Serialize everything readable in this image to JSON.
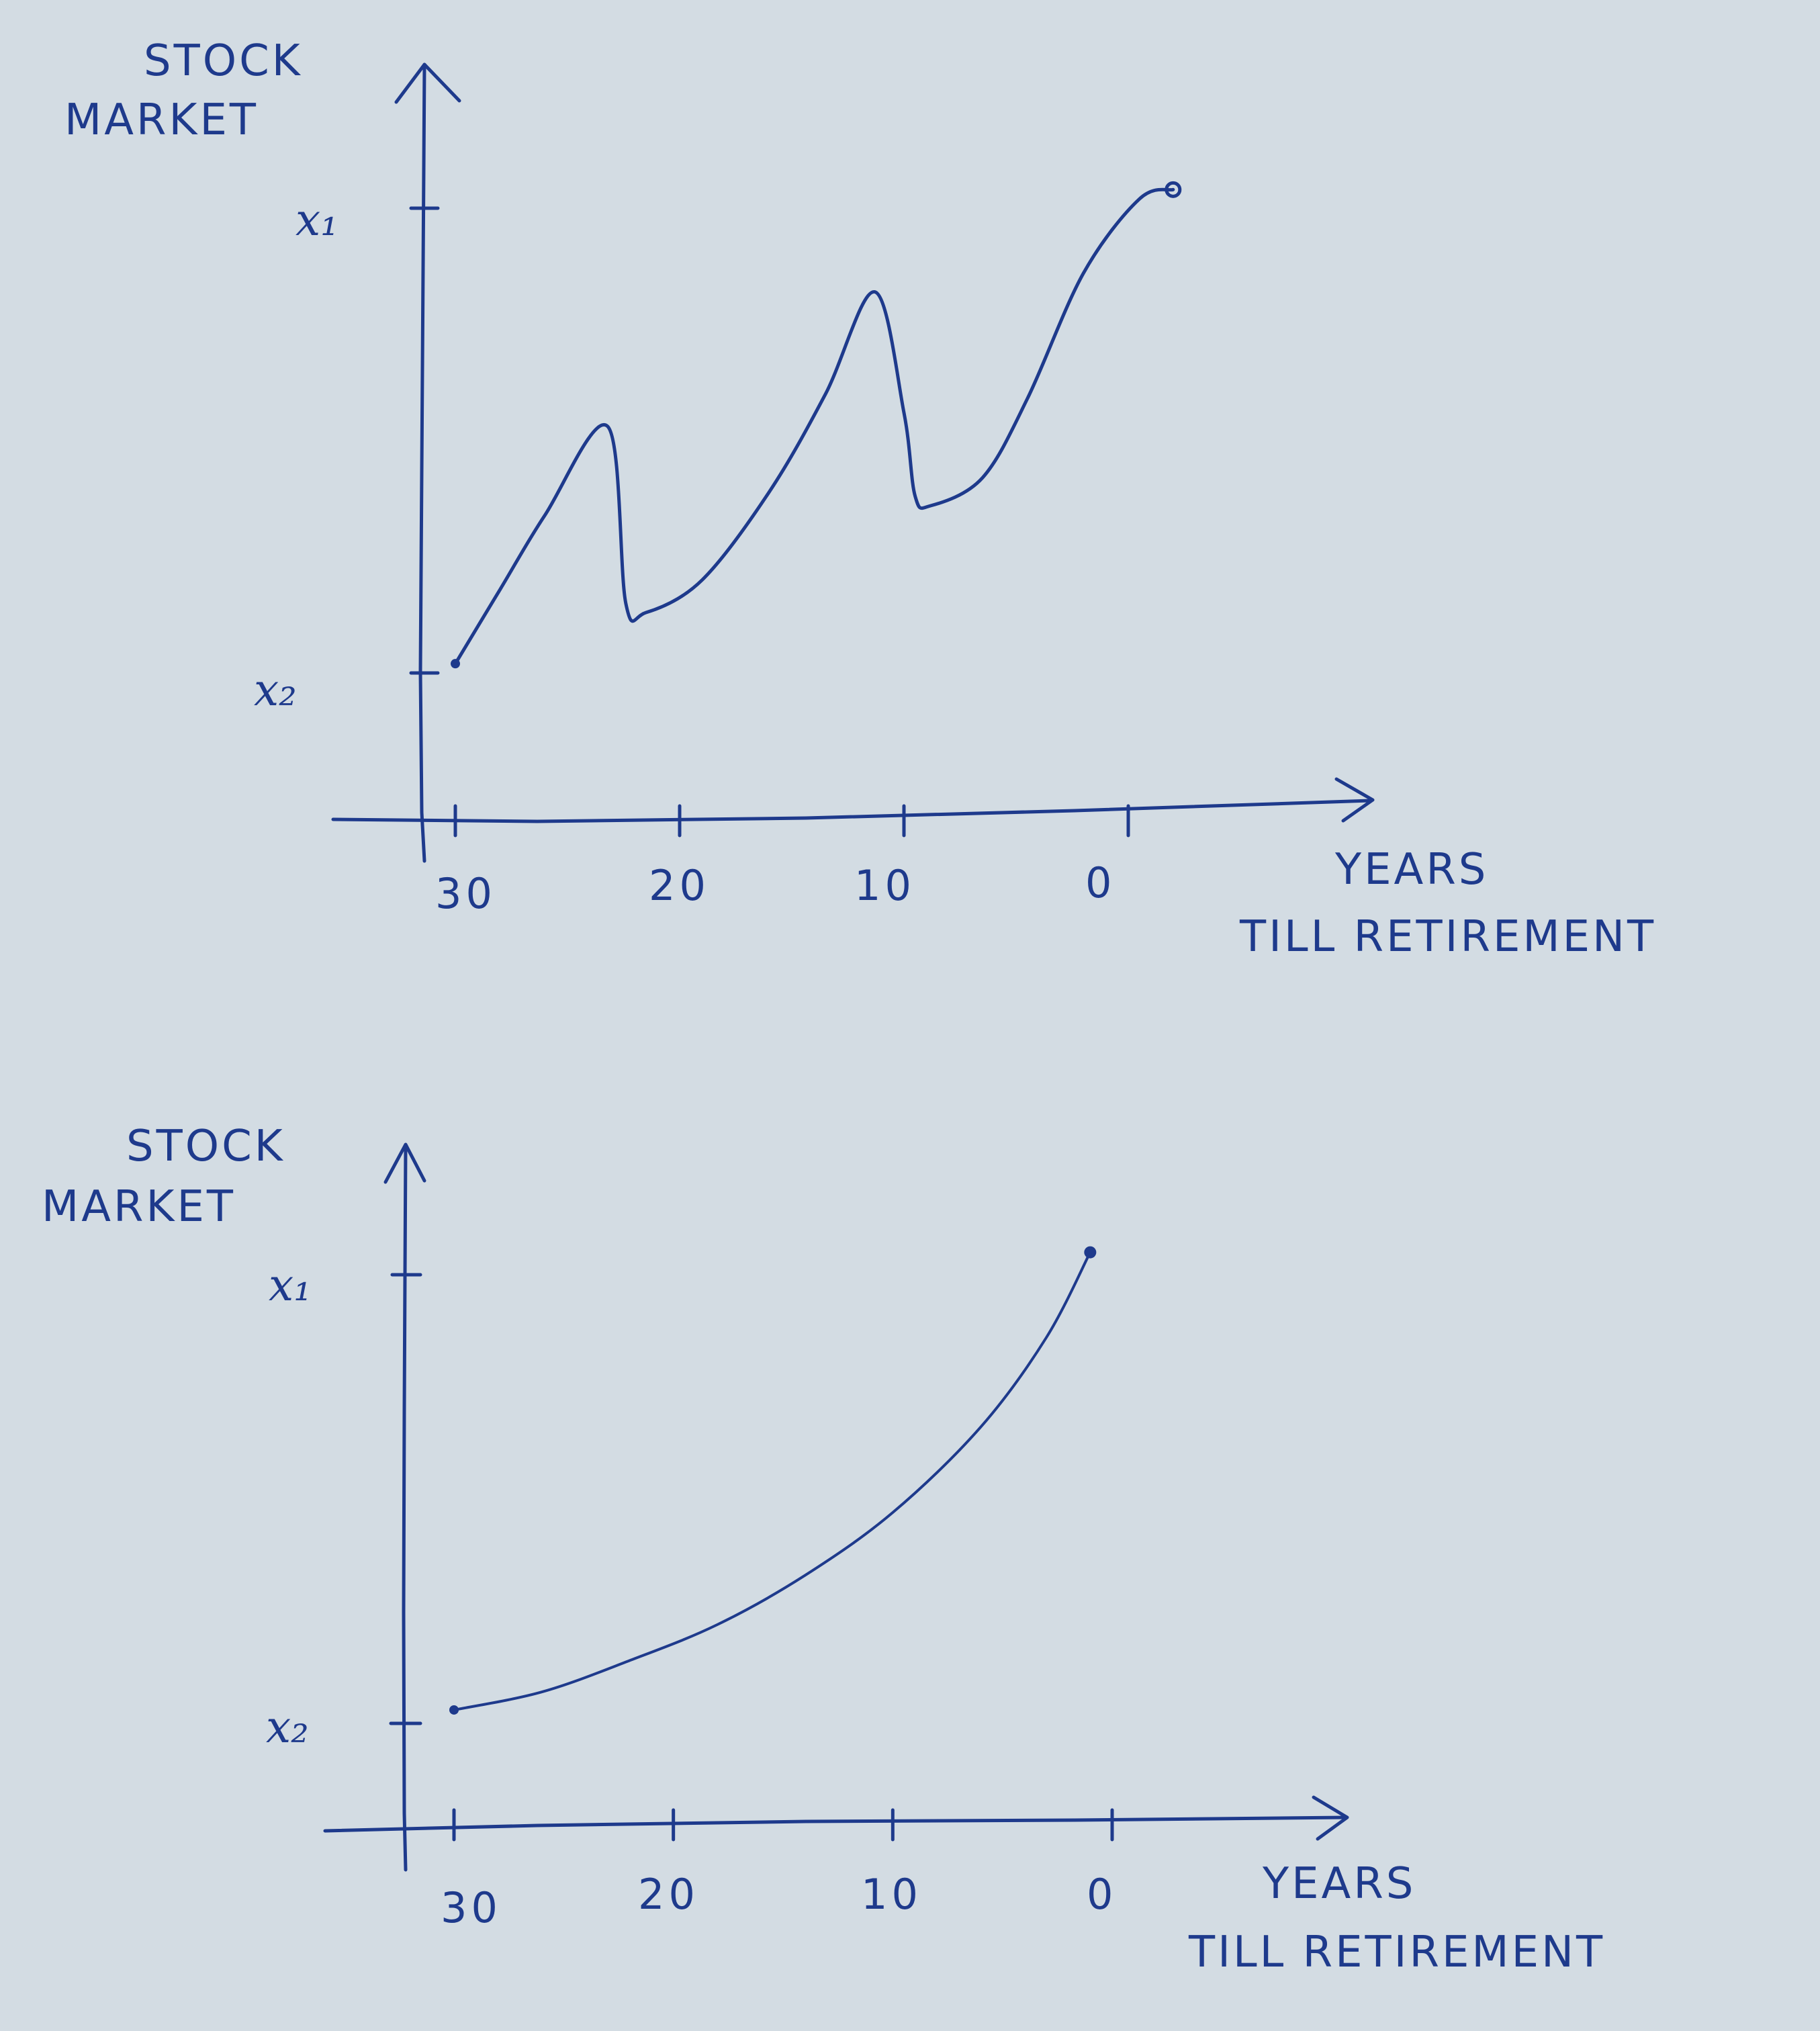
{
  "style": {
    "ink": "#1e3a8c",
    "paper": "#d3dce3"
  },
  "chart_data": [
    {
      "type": "line",
      "y_axis_label_line1": "STOCK",
      "y_axis_label_line2": "MARKET",
      "x_axis_label_line1": "YEARS",
      "x_axis_label_line2": "TILL RETIREMENT",
      "y_tick_labels": [
        "x₁",
        "x₂"
      ],
      "x_ticks": [
        30,
        20,
        10,
        0
      ],
      "x_tick_labels": [
        "30",
        "20",
        "10",
        "0"
      ],
      "x": [
        30,
        28,
        26,
        23.2,
        22.4,
        21.5,
        19,
        16,
        13.5,
        11.3,
        10,
        9.5,
        8.8,
        6.5,
        4.5,
        2,
        -0.5,
        -2
      ],
      "y": [
        0.02,
        0.18,
        0.34,
        0.53,
        0.15,
        0.13,
        0.2,
        0.39,
        0.6,
        0.82,
        0.56,
        0.38,
        0.36,
        0.42,
        0.59,
        0.86,
        1.02,
        1.04
      ]
    },
    {
      "type": "line",
      "y_axis_label_line1": "STOCK",
      "y_axis_label_line2": "MARKET",
      "x_axis_label_line1": "YEARS",
      "x_axis_label_line2": "TILL RETIREMENT",
      "y_tick_labels": [
        "x₁",
        "x₂"
      ],
      "x_ticks": [
        30,
        20,
        10,
        0
      ],
      "x_tick_labels": [
        "30",
        "20",
        "10",
        "0"
      ],
      "x": [
        30,
        26,
        22,
        18,
        14,
        10,
        6,
        3,
        1
      ],
      "y": [
        0.03,
        0.07,
        0.14,
        0.22,
        0.33,
        0.47,
        0.66,
        0.86,
        1.05
      ]
    }
  ]
}
